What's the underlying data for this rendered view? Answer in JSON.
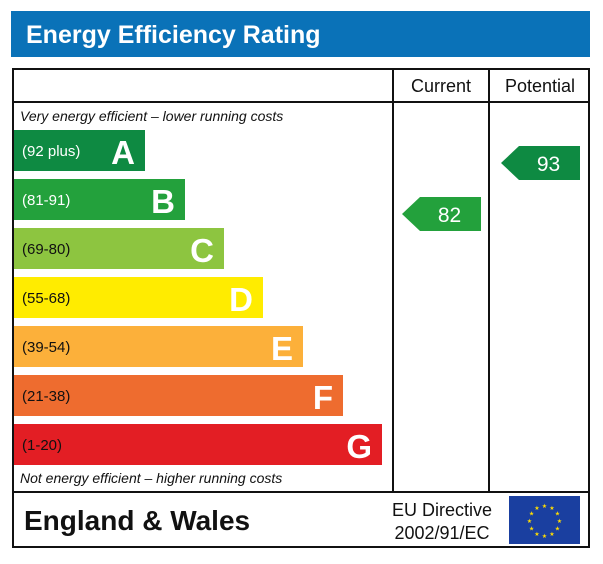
{
  "title": "Energy Efficiency Rating",
  "columns": {
    "current": "Current",
    "potential": "Potential"
  },
  "top_note": "Very energy efficient – lower running costs",
  "bottom_note": "Not energy efficient – higher running costs",
  "footer": {
    "region": "England & Wales",
    "directive_line1": "EU Directive",
    "directive_line2": "2002/91/EC",
    "flag_icon": "eu-flag-icon"
  },
  "colors": {
    "header": "#0a72b8",
    "current_arrow": "#23a13c",
    "potential_arrow": "#0e8a42"
  },
  "chart_data": {
    "type": "bar",
    "title": "Energy Efficiency Rating",
    "bands": [
      {
        "letter": "A",
        "range": "(92 plus)",
        "color": "#0e8a42"
      },
      {
        "letter": "B",
        "range": "(81-91)",
        "color": "#23a13c"
      },
      {
        "letter": "C",
        "range": "(69-80)",
        "color": "#8dc540"
      },
      {
        "letter": "D",
        "range": "(55-68)",
        "color": "#ffec00"
      },
      {
        "letter": "E",
        "range": "(39-54)",
        "color": "#fcb03a"
      },
      {
        "letter": "F",
        "range": "(21-38)",
        "color": "#ee6c2f"
      },
      {
        "letter": "G",
        "range": "(1-20)",
        "color": "#e31e24"
      }
    ],
    "current": {
      "value": 82,
      "band": "B"
    },
    "potential": {
      "value": 93,
      "band": "A"
    }
  }
}
